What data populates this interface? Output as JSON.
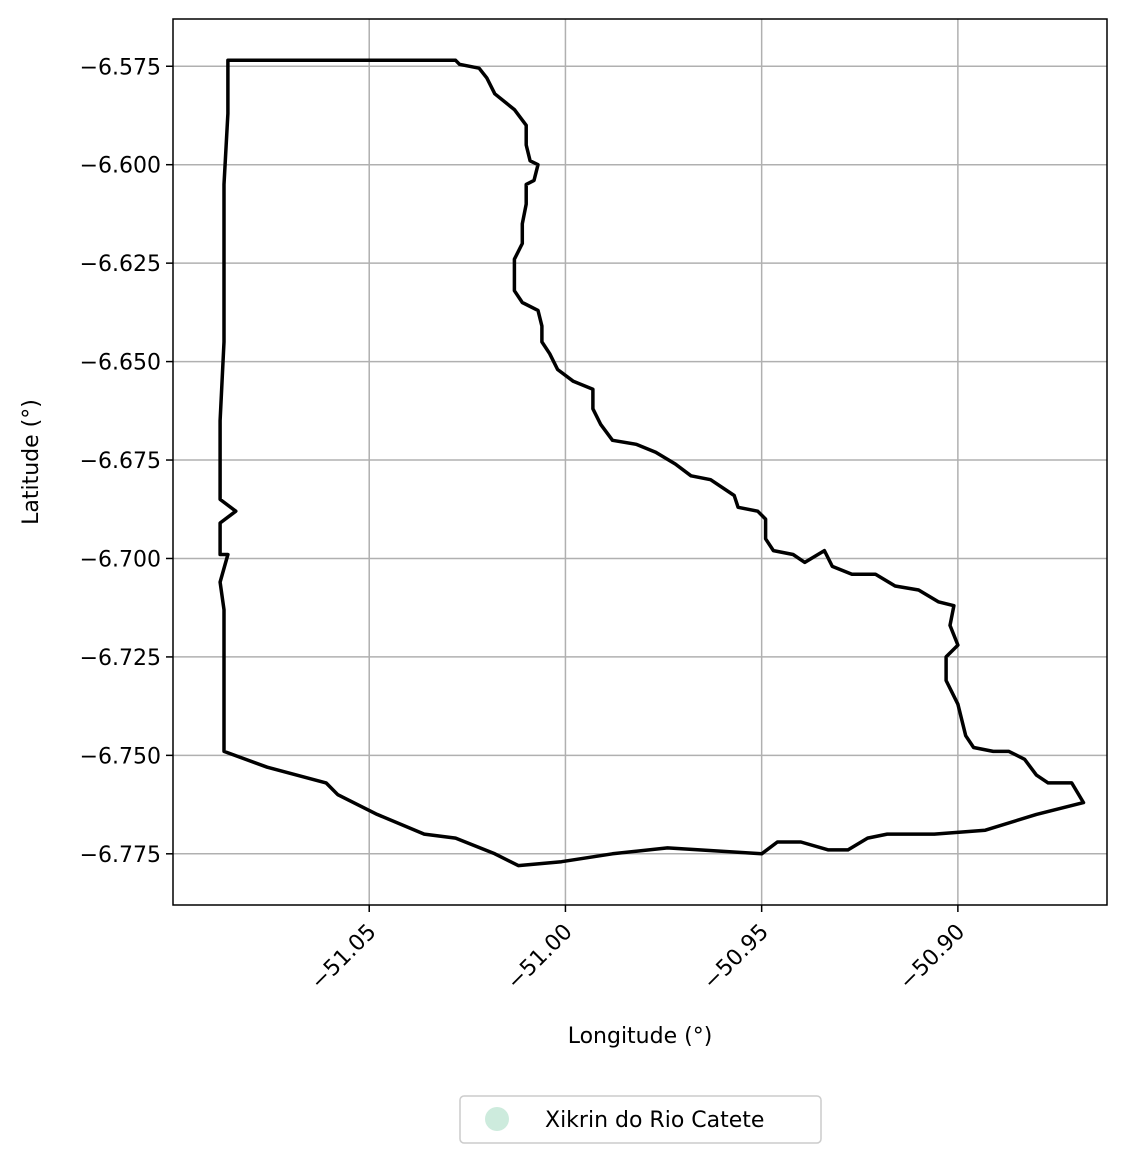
{
  "chart_data": {
    "type": "map",
    "xlabel": "Longitude (°)",
    "ylabel": "Latitude (°)",
    "xlim": [
      -51.1,
      -50.862
    ],
    "ylim": [
      -6.788,
      -6.563
    ],
    "grid": true,
    "x_ticks": [
      {
        "value": -51.05,
        "label": "−51.05"
      },
      {
        "value": -51.0,
        "label": "−51.00"
      },
      {
        "value": -50.95,
        "label": "−50.95"
      },
      {
        "value": -50.9,
        "label": "−50.90"
      }
    ],
    "y_ticks": [
      {
        "value": -6.575,
        "label": "−6.575"
      },
      {
        "value": -6.6,
        "label": "−6.600"
      },
      {
        "value": -6.625,
        "label": "−6.625"
      },
      {
        "value": -6.65,
        "label": "−6.650"
      },
      {
        "value": -6.675,
        "label": "−6.675"
      },
      {
        "value": -6.7,
        "label": "−6.700"
      },
      {
        "value": -6.725,
        "label": "−6.725"
      },
      {
        "value": -6.75,
        "label": "−6.750"
      },
      {
        "value": -6.775,
        "label": "−6.775"
      }
    ],
    "legend": {
      "placement": "bottom-center",
      "items": [
        {
          "label": "Xikrin do Rio Catete",
          "color": "#cdebdd",
          "marker": "circle"
        }
      ]
    },
    "boundary": {
      "name": "Xikrin do Rio Catete",
      "stroke": "#000000",
      "fill": "#cdebdd",
      "coordinates": [
        [
          -51.086,
          -6.5735
        ],
        [
          -51.028,
          -6.5735
        ],
        [
          -51.027,
          -6.5745
        ],
        [
          -51.022,
          -6.5755
        ],
        [
          -51.02,
          -6.578
        ],
        [
          -51.018,
          -6.582
        ],
        [
          -51.013,
          -6.586
        ],
        [
          -51.01,
          -6.59
        ],
        [
          -51.01,
          -6.595
        ],
        [
          -51.009,
          -6.599
        ],
        [
          -51.007,
          -6.6
        ],
        [
          -51.008,
          -6.604
        ],
        [
          -51.01,
          -6.605
        ],
        [
          -51.01,
          -6.61
        ],
        [
          -51.011,
          -6.615
        ],
        [
          -51.011,
          -6.62
        ],
        [
          -51.013,
          -6.624
        ],
        [
          -51.013,
          -6.628
        ],
        [
          -51.013,
          -6.632
        ],
        [
          -51.011,
          -6.635
        ],
        [
          -51.007,
          -6.637
        ],
        [
          -51.006,
          -6.641
        ],
        [
          -51.006,
          -6.645
        ],
        [
          -51.004,
          -6.648
        ],
        [
          -51.002,
          -6.652
        ],
        [
          -50.998,
          -6.655
        ],
        [
          -50.993,
          -6.657
        ],
        [
          -50.993,
          -6.662
        ],
        [
          -50.991,
          -6.666
        ],
        [
          -50.988,
          -6.67
        ],
        [
          -50.982,
          -6.671
        ],
        [
          -50.977,
          -6.673
        ],
        [
          -50.972,
          -6.676
        ],
        [
          -50.968,
          -6.679
        ],
        [
          -50.963,
          -6.68
        ],
        [
          -50.957,
          -6.684
        ],
        [
          -50.956,
          -6.687
        ],
        [
          -50.951,
          -6.688
        ],
        [
          -50.949,
          -6.69
        ],
        [
          -50.949,
          -6.695
        ],
        [
          -50.947,
          -6.698
        ],
        [
          -50.942,
          -6.699
        ],
        [
          -50.939,
          -6.701
        ],
        [
          -50.934,
          -6.698
        ],
        [
          -50.932,
          -6.702
        ],
        [
          -50.927,
          -6.704
        ],
        [
          -50.921,
          -6.704
        ],
        [
          -50.916,
          -6.707
        ],
        [
          -50.91,
          -6.708
        ],
        [
          -50.905,
          -6.711
        ],
        [
          -50.901,
          -6.712
        ],
        [
          -50.902,
          -6.717
        ],
        [
          -50.9,
          -6.722
        ],
        [
          -50.903,
          -6.725
        ],
        [
          -50.903,
          -6.731
        ],
        [
          -50.9,
          -6.737
        ],
        [
          -50.898,
          -6.745
        ],
        [
          -50.896,
          -6.748
        ],
        [
          -50.891,
          -6.749
        ],
        [
          -50.887,
          -6.749
        ],
        [
          -50.883,
          -6.751
        ],
        [
          -50.88,
          -6.755
        ],
        [
          -50.877,
          -6.757
        ],
        [
          -50.871,
          -6.757
        ],
        [
          -50.868,
          -6.762
        ],
        [
          -50.88,
          -6.765
        ],
        [
          -50.893,
          -6.769
        ],
        [
          -50.906,
          -6.77
        ],
        [
          -50.918,
          -6.77
        ],
        [
          -50.923,
          -6.771
        ],
        [
          -50.928,
          -6.774
        ],
        [
          -50.933,
          -6.774
        ],
        [
          -50.94,
          -6.772
        ],
        [
          -50.946,
          -6.772
        ],
        [
          -50.95,
          -6.775
        ],
        [
          -50.974,
          -6.7735
        ],
        [
          -50.988,
          -6.775
        ],
        [
          -51.001,
          -6.777
        ],
        [
          -51.012,
          -6.778
        ],
        [
          -51.018,
          -6.775
        ],
        [
          -51.028,
          -6.771
        ],
        [
          -51.036,
          -6.77
        ],
        [
          -51.048,
          -6.765
        ],
        [
          -51.058,
          -6.76
        ],
        [
          -51.061,
          -6.757
        ],
        [
          -51.076,
          -6.753
        ],
        [
          -51.087,
          -6.749
        ],
        [
          -51.087,
          -6.713
        ],
        [
          -51.088,
          -6.706
        ],
        [
          -51.086,
          -6.699
        ],
        [
          -51.088,
          -6.699
        ],
        [
          -51.088,
          -6.691
        ],
        [
          -51.084,
          -6.688
        ],
        [
          -51.088,
          -6.685
        ],
        [
          -51.088,
          -6.665
        ],
        [
          -51.087,
          -6.645
        ],
        [
          -51.087,
          -6.626
        ],
        [
          -51.087,
          -6.605
        ],
        [
          -51.086,
          -6.587
        ]
      ]
    }
  }
}
